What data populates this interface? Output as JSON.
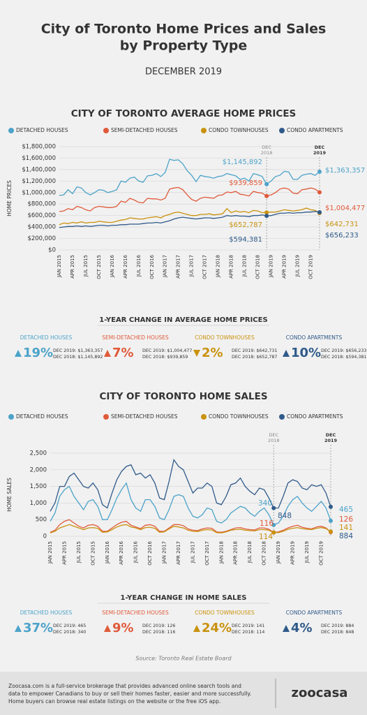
{
  "header": {
    "title_lines": [
      "City of Toronto Home Prices and Sales",
      "by Property Type"
    ],
    "subtitle": "DECEMBER 2019"
  },
  "chart_data": [
    {
      "type": "line",
      "title": "CITY OF TORONTO AVERAGE HOME PRICES",
      "y_label": "HOME PRICES",
      "categories": [
        "JAN 2015",
        null,
        null,
        "APR 2015",
        null,
        null,
        "JUL 2015",
        null,
        null,
        "OCT 2015",
        null,
        null,
        "JAN 2016",
        null,
        null,
        "APR 2016",
        null,
        null,
        "JUL 2016",
        null,
        null,
        "OCT 2016",
        null,
        null,
        "JAN 2017",
        null,
        null,
        "APR 2017",
        null,
        null,
        "JUL 2017",
        null,
        null,
        "OCT 2017",
        null,
        null,
        "JAN 2018",
        null,
        null,
        "APR 2018",
        null,
        null,
        "JUL 2018",
        null,
        null,
        "OCT 2018",
        null,
        null,
        "JAN 2019",
        null,
        null,
        "APR 2019",
        null,
        null,
        "JUL 2019",
        null,
        null,
        "OCT 2019",
        null,
        null
      ],
      "ylim": [
        0,
        1800000
      ],
      "yticks": [
        {
          "value": 0,
          "label": "$0"
        },
        {
          "value": 200000,
          "label": "$200,000"
        },
        {
          "value": 400000,
          "label": "$400,000"
        },
        {
          "value": 600000,
          "label": "$600,000"
        },
        {
          "value": 800000,
          "label": "$800,000"
        },
        {
          "value": 1000000,
          "label": "$1,000,000"
        },
        {
          "value": 1200000,
          "label": "$1,200,000"
        },
        {
          "value": 1400000,
          "label": "$1,400,000"
        },
        {
          "value": 1600000,
          "label": "$1,600,000"
        },
        {
          "value": 1800000,
          "label": "$1,800,000"
        }
      ],
      "grid": true,
      "markers": [
        [
          "DEC",
          "2018"
        ],
        [
          "DEC",
          "2019"
        ]
      ],
      "series": [
        {
          "name": "DETACHED HOUSES",
          "color": "#4ca3c9",
          "values": [
            950000,
            960000,
            1050000,
            980000,
            1100000,
            1080000,
            1000000,
            960000,
            1000000,
            1050000,
            1040000,
            1000000,
            1020000,
            1050000,
            1200000,
            1180000,
            1250000,
            1270000,
            1200000,
            1180000,
            1290000,
            1300000,
            1330000,
            1280000,
            1350000,
            1580000,
            1560000,
            1570000,
            1500000,
            1380000,
            1300000,
            1190000,
            1300000,
            1280000,
            1270000,
            1250000,
            1280000,
            1290000,
            1330000,
            1310000,
            1290000,
            1230000,
            1250000,
            1200000,
            1330000,
            1310000,
            1280000,
            1145892,
            1200000,
            1280000,
            1300000,
            1370000,
            1360000,
            1230000,
            1230000,
            1300000,
            1320000,
            1330000,
            1300000,
            1363357
          ],
          "value_labels": {
            "47": "$1,145,892",
            "59": "$1,363,357"
          }
        },
        {
          "name": "SEMI-DETACHED HOUSES",
          "color": "#e05a3a",
          "values": [
            670000,
            680000,
            720000,
            700000,
            760000,
            740000,
            700000,
            680000,
            740000,
            760000,
            750000,
            740000,
            740000,
            760000,
            850000,
            830000,
            900000,
            870000,
            830000,
            820000,
            900000,
            890000,
            890000,
            870000,
            900000,
            1060000,
            1080000,
            1090000,
            1050000,
            960000,
            880000,
            850000,
            900000,
            920000,
            910000,
            900000,
            950000,
            960000,
            1010000,
            1000000,
            1020000,
            970000,
            960000,
            940000,
            1020000,
            1000000,
            990000,
            939859,
            960000,
            1000000,
            1060000,
            1080000,
            1060000,
            990000,
            980000,
            1050000,
            1060000,
            1080000,
            1060000,
            1004477
          ],
          "value_labels": {
            "47": "$939,859",
            "59": "$1,004,477"
          }
        },
        {
          "name": "CONDO TOWNHOUSES",
          "color": "#c9920e",
          "values": [
            440000,
            470000,
            460000,
            480000,
            470000,
            490000,
            470000,
            480000,
            480000,
            500000,
            490000,
            480000,
            480000,
            500000,
            520000,
            530000,
            560000,
            550000,
            540000,
            540000,
            560000,
            570000,
            580000,
            560000,
            600000,
            620000,
            650000,
            660000,
            640000,
            620000,
            600000,
            600000,
            620000,
            620000,
            630000,
            610000,
            620000,
            630000,
            720000,
            650000,
            680000,
            660000,
            670000,
            650000,
            690000,
            680000,
            650000,
            652787,
            660000,
            660000,
            680000,
            700000,
            690000,
            680000,
            690000,
            700000,
            730000,
            700000,
            690000,
            642731
          ],
          "value_labels": {
            "47": "$652,787",
            "59": "$642,731"
          }
        },
        {
          "name": "CONDO APARTMENTS",
          "color": "#2f5a8a",
          "values": [
            390000,
            400000,
            410000,
            410000,
            420000,
            410000,
            420000,
            410000,
            420000,
            430000,
            430000,
            420000,
            430000,
            430000,
            440000,
            440000,
            450000,
            450000,
            450000,
            460000,
            470000,
            470000,
            480000,
            470000,
            490000,
            510000,
            540000,
            560000,
            570000,
            560000,
            550000,
            540000,
            550000,
            560000,
            560000,
            550000,
            560000,
            570000,
            600000,
            590000,
            600000,
            590000,
            590000,
            580000,
            600000,
            600000,
            610000,
            594381,
            600000,
            620000,
            640000,
            640000,
            650000,
            640000,
            650000,
            650000,
            660000,
            660000,
            670000,
            656233
          ],
          "value_labels": {
            "47": "$594,381",
            "59": "$656,233"
          }
        }
      ]
    },
    {
      "type": "line",
      "title": "CITY OF TORONTO HOME SALES",
      "y_label": "HOME SALES",
      "categories": [
        "JAN 2015",
        null,
        null,
        "APR 2015",
        null,
        null,
        "JUL 2015",
        null,
        null,
        "OCT 2015",
        null,
        null,
        "JAN 2016",
        null,
        null,
        "APR 2016",
        null,
        null,
        "JUL 2016",
        null,
        null,
        "OCT 2016",
        null,
        null,
        "JAN 2017",
        null,
        null,
        "APR 2017",
        null,
        null,
        "JUL 2017",
        null,
        null,
        "OCT 2017",
        null,
        null,
        "JAN 2018",
        null,
        null,
        "APR 2018",
        null,
        null,
        "JUL 2018",
        null,
        null,
        "OCT 2018",
        null,
        null,
        "JAN 2019",
        null,
        null,
        "APR 2019",
        null,
        null,
        "JUL 2019",
        null,
        null,
        "OCT 2019",
        null,
        null
      ],
      "ylim": [
        0,
        2500
      ],
      "yticks": [
        0,
        500,
        {
          "value": 1000,
          "label": "1,000"
        },
        {
          "value": 1500,
          "label": "1,500"
        },
        {
          "value": 2000,
          "label": "2,000"
        },
        {
          "value": 2500,
          "label": "2,500"
        }
      ],
      "grid": true,
      "markers": [
        [
          "DEC",
          "2018"
        ],
        [
          "DEC",
          "2019"
        ]
      ],
      "series": [
        {
          "name": "DETACHED HOUSES",
          "color": "#4ca3c9",
          "values": [
            450,
            700,
            1200,
            1400,
            1500,
            1200,
            1000,
            800,
            1050,
            1100,
            900,
            500,
            500,
            800,
            1150,
            1400,
            1600,
            1100,
            850,
            750,
            1100,
            1100,
            900,
            550,
            500,
            800,
            1200,
            1250,
            1200,
            850,
            600,
            550,
            650,
            850,
            800,
            450,
            400,
            500,
            700,
            800,
            900,
            850,
            700,
            600,
            750,
            850,
            650,
            340,
            400,
            600,
            900,
            1100,
            1200,
            1000,
            850,
            750,
            900,
            1050,
            850,
            465
          ]
        },
        {
          "name": "SEMI-DETACHED HOUSES",
          "color": "#e05a3a",
          "values": [
            120,
            180,
            350,
            450,
            500,
            400,
            300,
            250,
            330,
            350,
            300,
            150,
            150,
            250,
            350,
            420,
            450,
            330,
            280,
            230,
            330,
            350,
            300,
            150,
            150,
            250,
            350,
            350,
            320,
            220,
            180,
            170,
            220,
            250,
            240,
            130,
            120,
            150,
            200,
            250,
            260,
            220,
            200,
            190,
            250,
            250,
            210,
            116,
            130,
            180,
            250,
            300,
            330,
            270,
            240,
            220,
            280,
            300,
            250,
            126
          ]
        },
        {
          "name": "CONDO TOWNHOUSES",
          "color": "#c9920e",
          "values": [
            100,
            150,
            250,
            300,
            350,
            300,
            250,
            200,
            250,
            260,
            240,
            120,
            130,
            200,
            280,
            330,
            350,
            280,
            250,
            200,
            260,
            270,
            240,
            120,
            130,
            220,
            300,
            280,
            250,
            180,
            150,
            140,
            180,
            200,
            190,
            110,
            100,
            130,
            180,
            200,
            210,
            180,
            170,
            160,
            200,
            200,
            180,
            114,
            110,
            150,
            210,
            240,
            260,
            230,
            210,
            200,
            240,
            260,
            230,
            141
          ]
        },
        {
          "name": "CONDO APARTMENTS",
          "color": "#2f5a8a",
          "values": [
            750,
            1000,
            1500,
            1500,
            1800,
            1900,
            1700,
            1500,
            1450,
            1600,
            1400,
            950,
            850,
            1300,
            1700,
            1950,
            2100,
            2150,
            1850,
            1900,
            1750,
            1850,
            1600,
            1150,
            1100,
            1650,
            2300,
            2100,
            2000,
            1650,
            1300,
            1450,
            1450,
            1600,
            1500,
            1000,
            950,
            1200,
            1550,
            1600,
            1750,
            1500,
            1350,
            1250,
            1450,
            1400,
            1150,
            848,
            850,
            1200,
            1600,
            1700,
            1650,
            1450,
            1400,
            1550,
            1500,
            1550,
            1300,
            884
          ]
        }
      ]
    }
  ],
  "price_changes": {
    "title": "1-YEAR CHANGE IN AVERAGE HOME PRICES",
    "items": [
      {
        "label": "DETACHED HOUSES",
        "direction": "up",
        "change": "19%",
        "current": "DEC 2019: $1,363,357",
        "previous": "DEC 2018: $1,145,892"
      },
      {
        "label": "SEMI-DETACHED HOUSES",
        "direction": "up",
        "change": "7%",
        "current": "DEC 2019: $1,004,477",
        "previous": "DEC 2018: $939,859"
      },
      {
        "label": "CONDO TOWNHOUSES",
        "direction": "down",
        "change": "2%",
        "current": "DEC 2019: $642,731",
        "previous": "DEC 2018: $652,787"
      },
      {
        "label": "CONDO APARTMENTS",
        "direction": "up",
        "change": "10%",
        "current": "DEC 2019: $656,233",
        "previous": "DEC 2018: $594,381"
      }
    ]
  },
  "sales_changes": {
    "title": "1-YEAR CHANGE IN HOME SALES",
    "items": [
      {
        "label": "DETACHED HOUSES",
        "direction": "up",
        "change": "37%",
        "current": "DEC 2019: 465",
        "previous": "DEC 2018: 340"
      },
      {
        "label": "SEMI-DETACHED HOUSES",
        "direction": "up",
        "change": "9%",
        "current": "DEC 2019: 126",
        "previous": "DEC 2018: 116"
      },
      {
        "label": "CONDO TOWNHOUSES",
        "direction": "up",
        "change": "24%",
        "current": "DEC 2019: 141",
        "previous": "DEC 2018: 114"
      },
      {
        "label": "CONDO APARTMENTS",
        "direction": "up",
        "change": "4%",
        "current": "DEC 2019: 884",
        "previous": "DEC 2018: 848"
      }
    ]
  },
  "source": "Source: Toronto Real Estate Board",
  "footer": {
    "lines": [
      "Zoocasa.com is a full-service brokerage that provides advanced online search tools and",
      "data to empower Canadians to buy or sell their homes faster, easier and more successfully.",
      "Home buyers can browse real estate listings on the website or the free iOS app."
    ],
    "logo": "zoocasa"
  }
}
